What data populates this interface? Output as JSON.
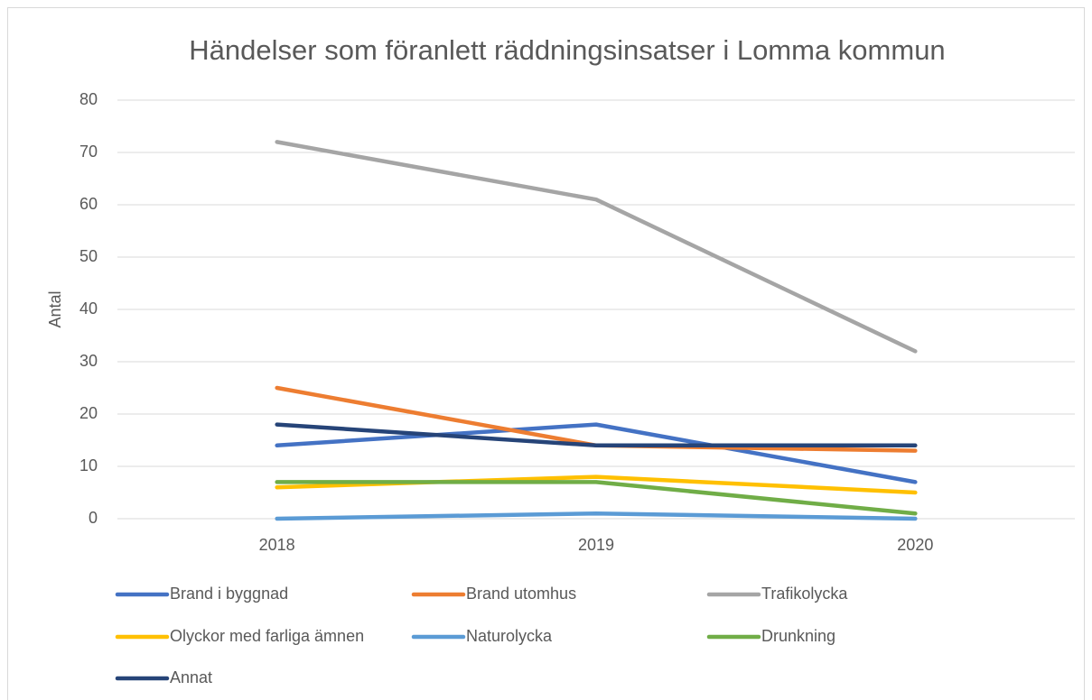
{
  "chart_data": {
    "type": "line",
    "title": "Händelser som föranlett räddningsinsatser i Lomma kommun",
    "y_label": "Antal",
    "categories": [
      "2018",
      "2019",
      "2020"
    ],
    "series": [
      {
        "name": "Brand i byggnad",
        "color": "#4472c4",
        "values": [
          14,
          18,
          7
        ]
      },
      {
        "name": "Brand utomhus",
        "color": "#ed7d31",
        "values": [
          25,
          14,
          13
        ]
      },
      {
        "name": "Trafikolycka",
        "color": "#a5a5a5",
        "values": [
          72,
          61,
          32
        ]
      },
      {
        "name": "Olyckor med farliga ämnen",
        "color": "#ffc000",
        "values": [
          6,
          8,
          5
        ]
      },
      {
        "name": "Naturolycka",
        "color": "#5b9bd5",
        "values": [
          0,
          1,
          0
        ]
      },
      {
        "name": "Drunkning",
        "color": "#70ad47",
        "values": [
          7,
          7,
          1
        ]
      },
      {
        "name": "Annat",
        "color": "#264478",
        "values": [
          18,
          14,
          14
        ]
      }
    ],
    "ylim": [
      0,
      80
    ],
    "yticks": [
      0,
      10,
      20,
      30,
      40,
      50,
      60,
      70,
      80
    ],
    "grid": true,
    "legend": "bottom"
  }
}
